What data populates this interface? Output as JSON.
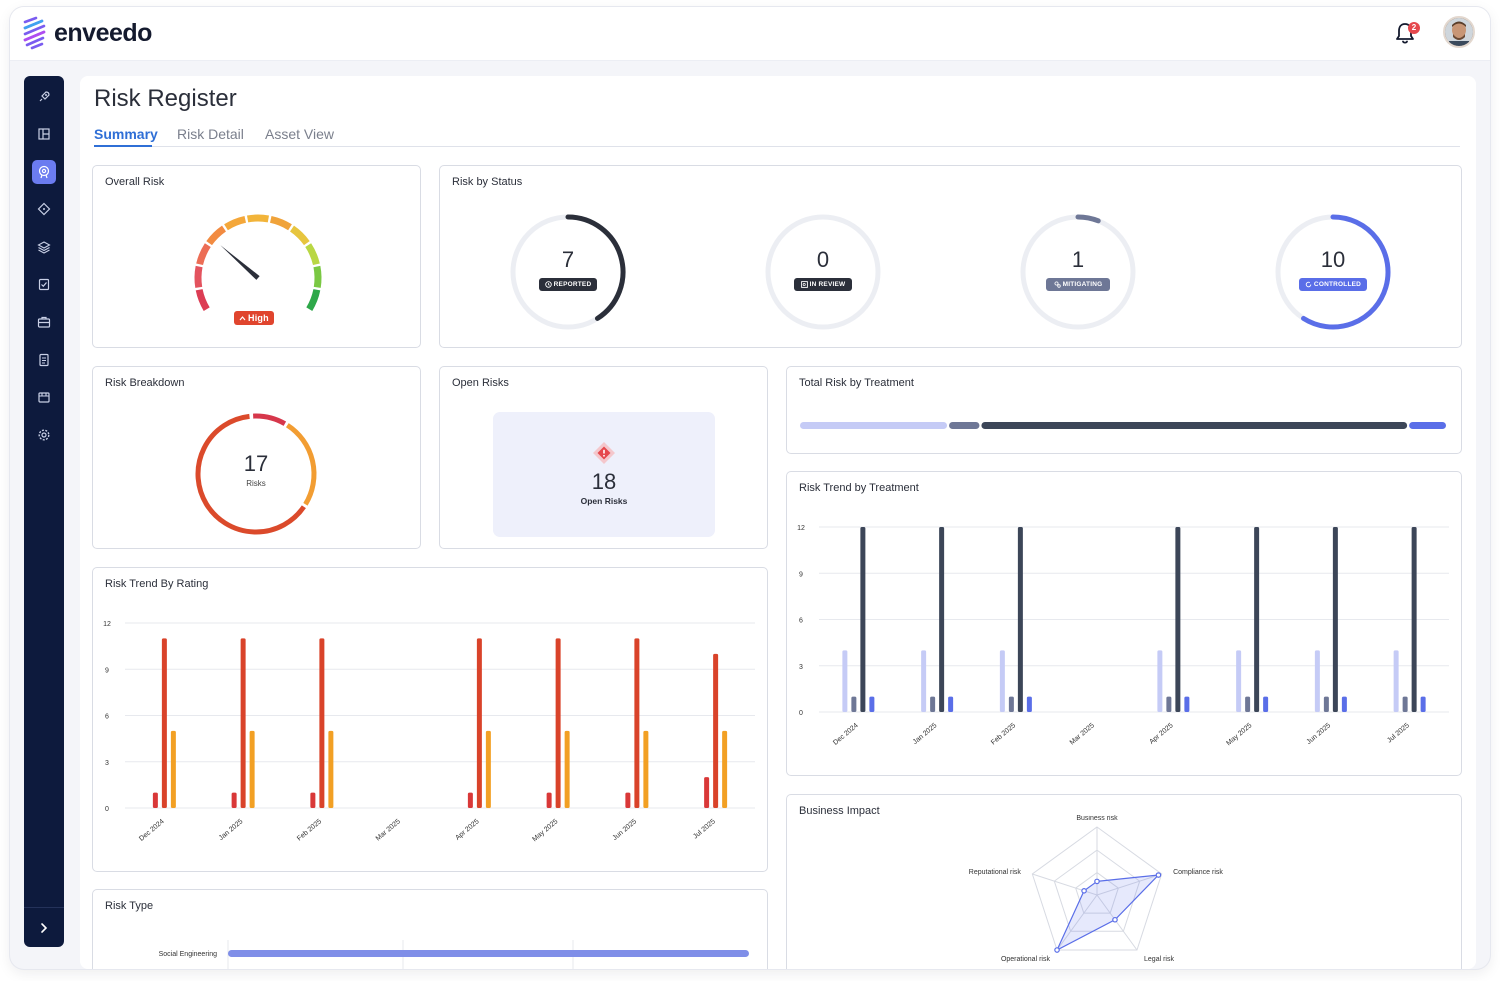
{
  "app": {
    "brand": "enveedo",
    "notification_count": "2"
  },
  "sidebar": {
    "items": [
      {
        "icon": "rocket-icon"
      },
      {
        "icon": "dashboard-icon"
      },
      {
        "icon": "risk-register-icon",
        "active": true
      },
      {
        "icon": "diamond-icon"
      },
      {
        "icon": "layers-icon"
      },
      {
        "icon": "checklist-icon"
      },
      {
        "icon": "briefcase-icon"
      },
      {
        "icon": "document-icon"
      },
      {
        "icon": "store-icon"
      },
      {
        "icon": "settings-icon"
      }
    ],
    "expand_icon": "chevron-right-icon"
  },
  "page": {
    "title": "Risk Register",
    "tabs": [
      {
        "label": "Summary",
        "active": true
      },
      {
        "label": "Risk Detail"
      },
      {
        "label": "Asset View"
      }
    ]
  },
  "overall_risk": {
    "title": "Overall Risk",
    "level": "High",
    "needle_value": 0.3
  },
  "risk_by_status": {
    "title": "Risk by Status",
    "items": [
      {
        "value": "7",
        "label": "REPORTED",
        "fraction": 0.41,
        "color": "#2b2f3a"
      },
      {
        "value": "0",
        "label": "IN REVIEW",
        "fraction": 0.0,
        "color": "#2b2f3a"
      },
      {
        "value": "1",
        "label": "MITIGATING",
        "fraction": 0.06,
        "color": "#6e7796"
      },
      {
        "value": "10",
        "label": "CONTROLLED",
        "fraction": 0.59,
        "color": "#5a6ee8"
      }
    ]
  },
  "risk_breakdown": {
    "title": "Risk Breakdown",
    "total": "17",
    "unit": "Risks"
  },
  "open_risks": {
    "title": "Open Risks",
    "value": "18",
    "label": "Open Risks"
  },
  "total_risk_by_treatment": {
    "title": "Total Risk by Treatment",
    "segments": [
      {
        "fraction": 0.23,
        "color": "#c5cbf6"
      },
      {
        "fraction": 0.05,
        "color": "#6e7796"
      },
      {
        "fraction": 0.66,
        "color": "#3c4658"
      },
      {
        "fraction": 0.06,
        "color": "#5a6ee8"
      }
    ]
  },
  "risk_type": {
    "title": "Risk Type",
    "categories": [
      "Social Engineering"
    ],
    "values": [
      1
    ]
  },
  "business_impact": {
    "title": "Business Impact",
    "axes": [
      "Business risk",
      "Compliance risk",
      "Legal risk",
      "Operational risk",
      "Reputational risk"
    ],
    "values": [
      0.2,
      0.95,
      0.45,
      1.0,
      0.2
    ]
  },
  "chart_data": [
    {
      "type": "bar",
      "title": "Risk Trend By Rating",
      "categories": [
        "Dec 2024",
        "Jan 2025",
        "Feb 2025",
        "Mar 2025",
        "Apr 2025",
        "May 2025",
        "Jun 2025",
        "Jul 2025"
      ],
      "ylim": [
        0,
        12
      ],
      "yticks": [
        0,
        3,
        6,
        9,
        12
      ],
      "series": [
        {
          "color": "#d93838",
          "values": [
            1,
            1,
            1,
            0,
            1,
            1,
            1,
            2
          ]
        },
        {
          "color": "#d9432a",
          "values": [
            11,
            11,
            11,
            0,
            11,
            11,
            11,
            10
          ]
        },
        {
          "color": "#f2a024",
          "values": [
            5,
            5,
            5,
            0,
            5,
            5,
            5,
            5
          ]
        }
      ]
    },
    {
      "type": "bar",
      "title": "Risk Trend by Treatment",
      "categories": [
        "Dec 2024",
        "Jan 2025",
        "Feb 2025",
        "Mar 2025",
        "Apr 2025",
        "May 2025",
        "Jun 2025",
        "Jul 2025"
      ],
      "ylim": [
        0,
        12
      ],
      "yticks": [
        0,
        3,
        6,
        9,
        12
      ],
      "series": [
        {
          "color": "#c5cbf6",
          "values": [
            4,
            4,
            4,
            0,
            4,
            4,
            4,
            4
          ]
        },
        {
          "color": "#6e7796",
          "values": [
            1,
            1,
            1,
            0,
            1,
            1,
            1,
            1
          ]
        },
        {
          "color": "#3c4658",
          "values": [
            12,
            12,
            12,
            0,
            12,
            12,
            12,
            12
          ]
        },
        {
          "color": "#5a6ee8",
          "values": [
            1,
            1,
            1,
            0,
            1,
            1,
            1,
            1
          ]
        }
      ]
    }
  ]
}
